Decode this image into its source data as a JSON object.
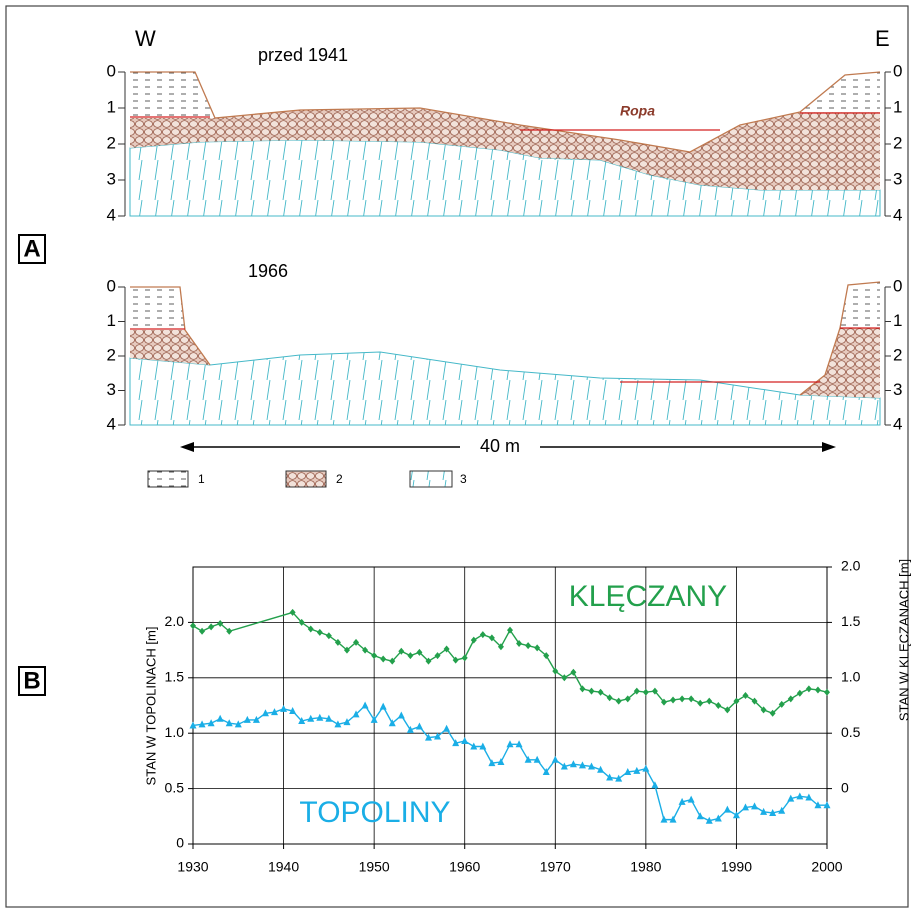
{
  "panel_a": {
    "label": "A",
    "west": "W",
    "east": "E",
    "before_title": "przed 1941",
    "after_title": "1966",
    "oil_label": "Ropa",
    "scale_label": "40 m",
    "depth_labels": [
      "0",
      "1",
      "2",
      "3",
      "4"
    ],
    "legend": [
      "1",
      "2",
      "3"
    ]
  },
  "panel_b": {
    "label": "B"
  },
  "chart_data": {
    "type": "line",
    "y_label": "STAN W TOPOLINACH [m]",
    "y2_label": "STAN W KLĘCZANACH [m]",
    "xlim": [
      1930,
      2000
    ],
    "xticks": [
      1930,
      1940,
      1950,
      1960,
      1970,
      1980,
      1990,
      2000
    ],
    "ylim": [
      0,
      2.5
    ],
    "yticks": [
      0,
      0.5,
      {
        "value": 1,
        "label": "1.0"
      },
      1.5,
      {
        "value": 2,
        "label": "2.0"
      }
    ],
    "y2lim": [
      -0.5,
      2.0
    ],
    "y2ticks": [
      0,
      0.5,
      {
        "value": 1,
        "label": "1.0"
      },
      1.5,
      {
        "value": 2,
        "label": "2.0"
      }
    ],
    "grid": true,
    "x": [
      1930,
      1931,
      1932,
      1933,
      1934,
      1935,
      1936,
      1937,
      1938,
      1939,
      1940,
      1941,
      1942,
      1943,
      1944,
      1945,
      1946,
      1947,
      1948,
      1949,
      1950,
      1951,
      1952,
      1953,
      1954,
      1955,
      1956,
      1957,
      1958,
      1959,
      1960,
      1961,
      1962,
      1963,
      1964,
      1965,
      1966,
      1967,
      1968,
      1969,
      1970,
      1971,
      1972,
      1973,
      1974,
      1975,
      1976,
      1977,
      1978,
      1979,
      1980,
      1981,
      1982,
      1983,
      1984,
      1985,
      1986,
      1987,
      1988,
      1989,
      1990,
      1991,
      1992,
      1993,
      1994,
      1995,
      1996,
      1997,
      1998,
      1999,
      2000
    ],
    "series": [
      {
        "name": "TOPOLINY",
        "color": "#1aaee6",
        "marker": "triangle",
        "values": [
          1.07,
          1.08,
          1.09,
          1.13,
          1.09,
          1.08,
          1.12,
          1.12,
          1.18,
          1.19,
          1.22,
          1.2,
          1.11,
          1.13,
          1.14,
          1.13,
          1.08,
          1.1,
          1.17,
          1.25,
          1.12,
          1.24,
          1.09,
          1.16,
          1.03,
          1.06,
          0.96,
          0.97,
          1.04,
          0.91,
          0.93,
          0.88,
          0.88,
          0.73,
          0.74,
          0.9,
          0.9,
          0.76,
          0.76,
          0.65,
          0.76,
          0.7,
          0.72,
          0.71,
          0.7,
          0.67,
          0.6,
          0.59,
          0.65,
          0.66,
          0.68,
          0.53,
          0.22,
          0.22,
          0.38,
          0.4,
          0.25,
          0.21,
          0.23,
          0.31,
          0.26,
          0.33,
          0.34,
          0.29,
          0.28,
          0.3,
          0.41,
          0.43,
          0.42,
          0.35,
          0.35
        ]
      },
      {
        "name": "KLĘCZANY",
        "color": "#23a04c",
        "marker": "diamond",
        "axis": "y2",
        "x": [
          1930,
          1931,
          1932,
          1933,
          1934,
          1941,
          1942,
          1943,
          1944,
          1945,
          1946,
          1947,
          1948,
          1949,
          1950,
          1951,
          1952,
          1953,
          1954,
          1955,
          1956,
          1957,
          1958,
          1959,
          1960,
          1961,
          1962,
          1963,
          1964,
          1965,
          1966,
          1967,
          1968,
          1969,
          1970,
          1971,
          1972,
          1973,
          1974,
          1975,
          1976,
          1977,
          1978,
          1979,
          1980,
          1981,
          1982,
          1983,
          1984,
          1985,
          1986,
          1987,
          1988,
          1989,
          1990,
          1991,
          1992,
          1993,
          1994,
          1995,
          1996,
          1997,
          1998,
          1999,
          2000
        ],
        "values": [
          1.47,
          1.42,
          1.46,
          1.49,
          1.42,
          1.59,
          1.5,
          1.44,
          1.41,
          1.38,
          1.32,
          1.25,
          1.32,
          1.25,
          1.2,
          1.17,
          1.15,
          1.24,
          1.2,
          1.23,
          1.15,
          1.2,
          1.26,
          1.16,
          1.18,
          1.34,
          1.39,
          1.36,
          1.28,
          1.43,
          1.31,
          1.29,
          1.27,
          1.2,
          1.06,
          1.0,
          1.05,
          0.9,
          0.88,
          0.87,
          0.82,
          0.79,
          0.81,
          0.88,
          0.87,
          0.88,
          0.78,
          0.8,
          0.81,
          0.81,
          0.77,
          0.79,
          0.75,
          0.71,
          0.79,
          0.84,
          0.79,
          0.71,
          0.68,
          0.76,
          0.81,
          0.86,
          0.9,
          0.89,
          0.87
        ]
      }
    ]
  }
}
